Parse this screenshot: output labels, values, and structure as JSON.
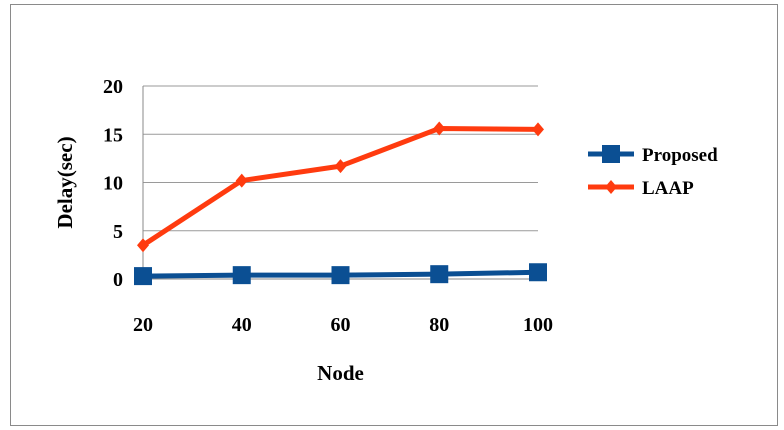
{
  "chart_data": {
    "type": "line",
    "title": "",
    "xlabel": "Node",
    "ylabel": "Delay(sec)",
    "categories": [
      "20",
      "40",
      "60",
      "80",
      "100"
    ],
    "ylim": [
      0,
      20
    ],
    "yticks": [
      "0",
      "5",
      "10",
      "15",
      "20"
    ],
    "grid": "horizontal",
    "legend_position": "right",
    "series": [
      {
        "name": "Proposed",
        "values": [
          0.3,
          0.4,
          0.4,
          0.5,
          0.7
        ],
        "color": "#0b4f93",
        "marker": "square"
      },
      {
        "name": "LAAP",
        "values": [
          3.5,
          10.2,
          11.7,
          15.6,
          15.5
        ],
        "color": "#ff3b0f",
        "marker": "diamond"
      }
    ]
  }
}
